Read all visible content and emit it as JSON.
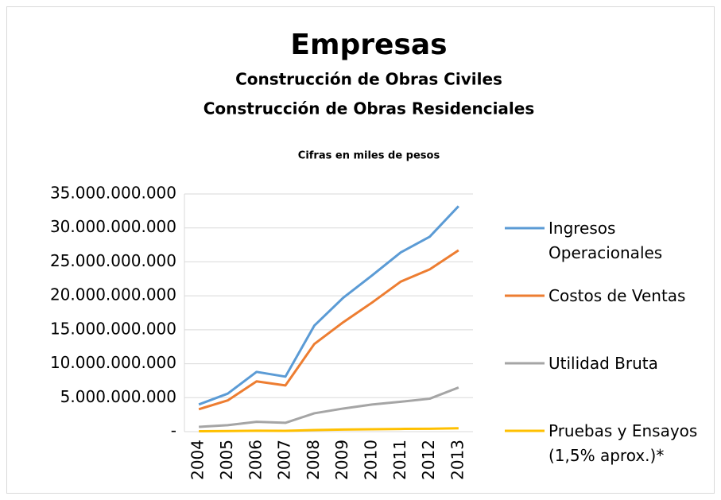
{
  "chart_data": {
    "type": "line",
    "title": "Empresas",
    "subtitle": [
      "Construcción de Obras Civiles",
      "Construcción de Obras Residenciales"
    ],
    "note": "Cifras en miles de pesos",
    "categories": [
      "2004",
      "2005",
      "2006",
      "2007",
      "2008",
      "2009",
      "2010",
      "2011",
      "2012",
      "2013"
    ],
    "series": [
      {
        "name": "Ingresos Operacionales",
        "color": "#5b9bd5",
        "values": [
          4000000000,
          5600000000,
          8800000000,
          8100000000,
          15600000000,
          19700000000,
          23000000000,
          26400000000,
          28700000000,
          33200000000
        ]
      },
      {
        "name": "Costos de Ventas",
        "color": "#ed7d31",
        "values": [
          3300000000,
          4600000000,
          7400000000,
          6800000000,
          12900000000,
          16100000000,
          19000000000,
          22100000000,
          23900000000,
          26700000000
        ]
      },
      {
        "name": "Utilidad Bruta",
        "color": "#a5a5a5",
        "values": [
          700000000,
          950000000,
          1450000000,
          1300000000,
          2700000000,
          3400000000,
          4000000000,
          4400000000,
          4850000000,
          6500000000
        ]
      },
      {
        "name": "Pruebas y Ensayos (1,5% aprox.)*",
        "color": "#ffc000",
        "values": [
          60000000,
          84000000,
          132000000,
          120000000,
          230000000,
          300000000,
          350000000,
          400000000,
          430000000,
          500000000
        ]
      }
    ],
    "ylim": [
      0,
      35000000000
    ],
    "yticks": [
      {
        "value": 0,
        "label": "-"
      },
      {
        "value": 5000000000,
        "label": "5.000.000.000"
      },
      {
        "value": 10000000000,
        "label": "10.000.000.000"
      },
      {
        "value": 15000000000,
        "label": "15.000.000.000"
      },
      {
        "value": 20000000000,
        "label": "20.000.000.000"
      },
      {
        "value": 25000000000,
        "label": "25.000.000.000"
      },
      {
        "value": 30000000000,
        "label": "30.000.000.000"
      },
      {
        "value": 35000000000,
        "label": "35.000.000.000"
      }
    ],
    "grid": true,
    "legend": "right"
  }
}
